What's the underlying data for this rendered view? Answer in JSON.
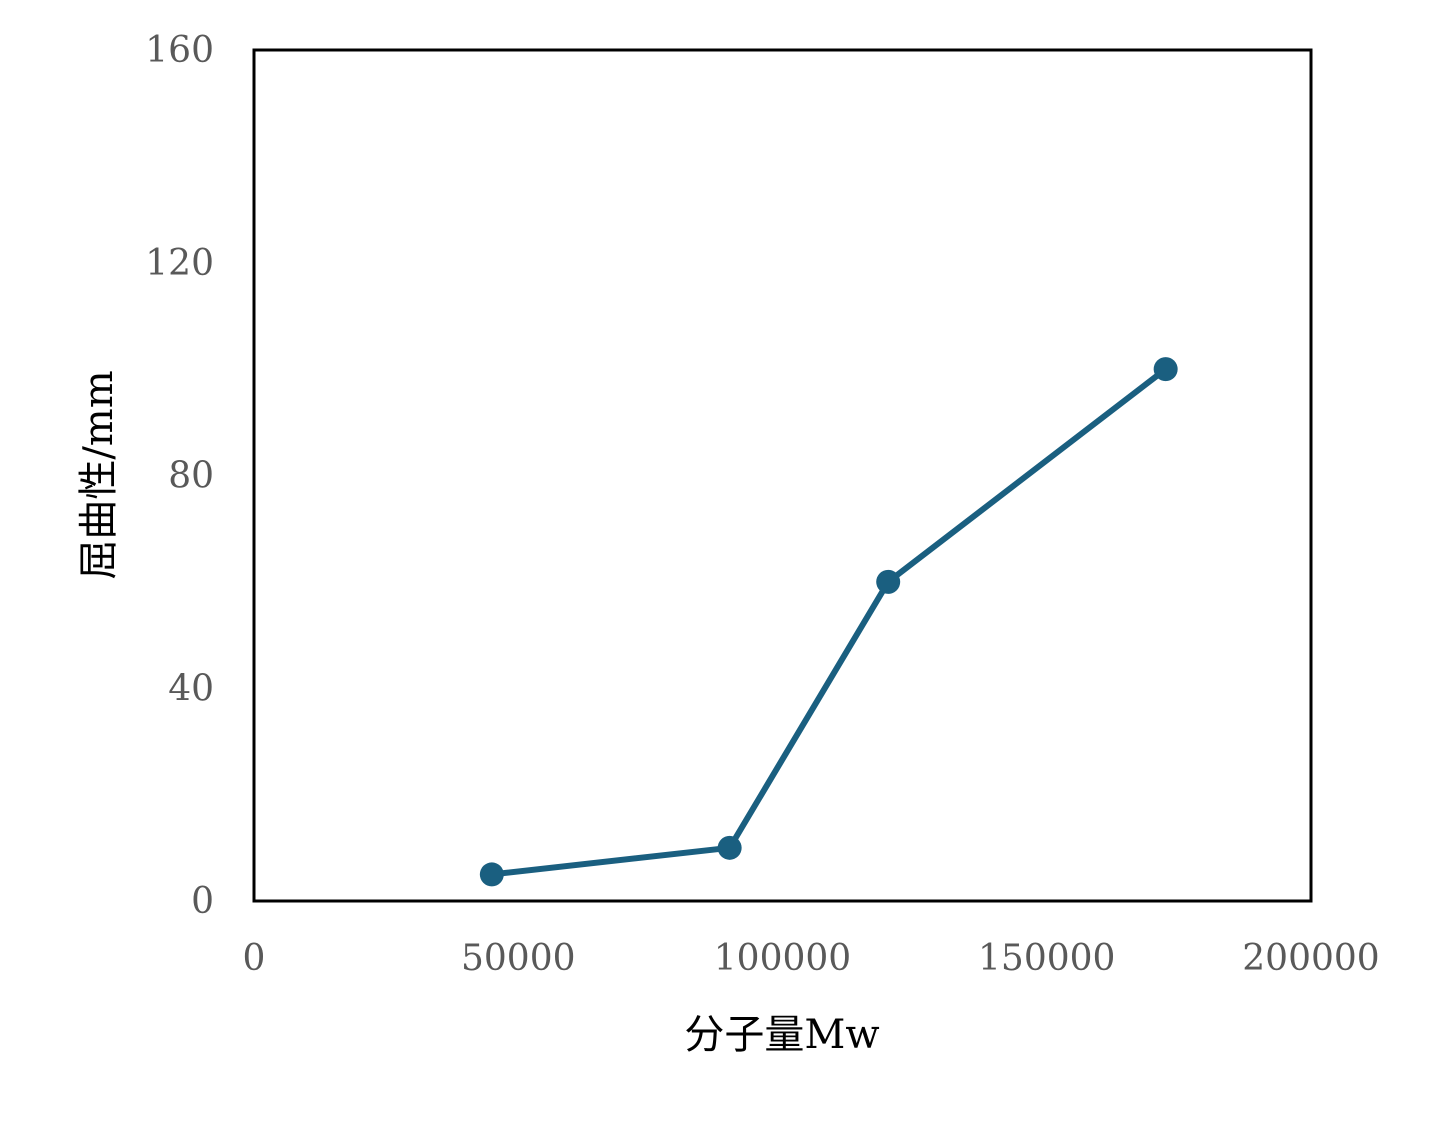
{
  "chart_data": {
    "type": "line",
    "title": "",
    "xlabel": "分子量Mw",
    "ylabel": "屈曲性/mm",
    "xlim": [
      0,
      200000
    ],
    "ylim": [
      0,
      160
    ],
    "x_ticks": [
      "0",
      "50000",
      "100000",
      "150000",
      "200000"
    ],
    "y_ticks": [
      "0",
      "40",
      "80",
      "120",
      "160"
    ],
    "grid": false,
    "legend": "none",
    "series": [
      {
        "color": "#1a5f80",
        "marker": "circle",
        "x": [
          45000,
          90000,
          120000,
          172500
        ],
        "y": [
          5,
          10,
          60,
          100
        ]
      }
    ]
  }
}
